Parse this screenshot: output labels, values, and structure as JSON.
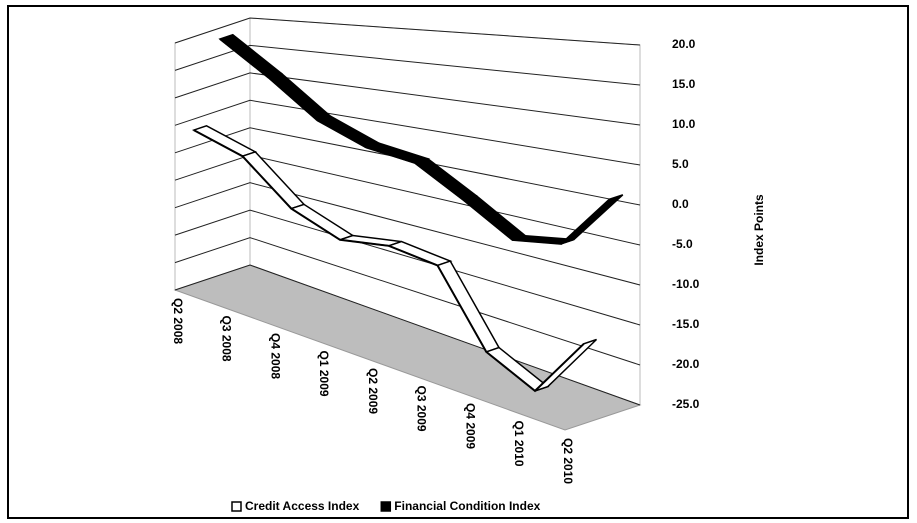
{
  "chart_data": {
    "type": "line3d",
    "y_label": "Index Points",
    "categories": [
      "Q2 2008",
      "Q3 2008",
      "Q4 2008",
      "Q1 2009",
      "Q2 2009",
      "Q3 2009",
      "Q4 2009",
      "Q1 2010",
      "Q2 2010"
    ],
    "series": [
      {
        "name": "Credit Access Index",
        "color": "#ffffff",
        "values": [
          3,
          0,
          -7,
          -10,
          -9,
          -10,
          -20,
          -23,
          -15
        ]
      },
      {
        "name": "Financial Condition Index",
        "color": "#000000",
        "values": [
          18,
          12,
          6,
          3,
          2,
          -2,
          -6,
          -5,
          2
        ]
      }
    ],
    "ylim": [
      -25,
      20
    ],
    "yticks": [
      {
        "value": -25,
        "label": "-25.0"
      },
      {
        "value": -20,
        "label": "-20.0"
      },
      {
        "value": -15,
        "label": "-15.0"
      },
      {
        "value": -10,
        "label": "-10.0"
      },
      {
        "value": -5,
        "label": "-5.0"
      },
      {
        "value": 0,
        "label": "0.0"
      },
      {
        "value": 5,
        "label": "5.0"
      },
      {
        "value": 10,
        "label": "10.0"
      },
      {
        "value": 15,
        "label": "15.0"
      },
      {
        "value": 20,
        "label": "20.0"
      }
    ],
    "grid": true
  }
}
